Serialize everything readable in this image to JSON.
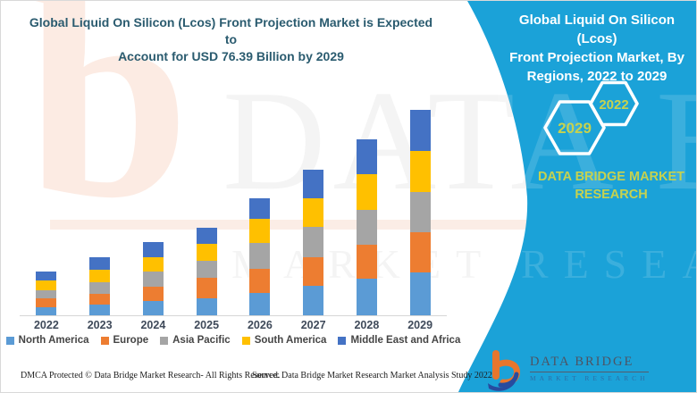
{
  "header": {
    "title_line1": "Global Liquid On Silicon (Lcos) Front Projection Market is Expected to",
    "title_line2": "Account for USD 76.39 Billion by 2029",
    "title_color": "#2a5b6f"
  },
  "side_panel": {
    "background_color": "#1ba2d8",
    "title_line1": "Global Liquid On Silicon (Lcos)",
    "title_line2": "Front Projection Market, By",
    "title_line3": "Regions, 2022 to 2029",
    "hexagon_left_label": "2029",
    "hexagon_right_label": "2022",
    "brand_line1": "DATA BRIDGE MARKET",
    "brand_line2": "RESEARCH",
    "accent_text_color": "#c6d24f"
  },
  "logo": {
    "name": "DATA BRIDGE",
    "subtitle": "MARKET RESEARCH"
  },
  "footer": {
    "left": "DMCA Protected © Data Bridge Market Research- All Rights Reserved.",
    "right": "Source: Data Bridge Market Research Market Analysis Study 2022"
  },
  "watermark": {
    "row1": "DATA BRIDGE",
    "row2": "MARKET RESEARCH",
    "letter_b": "b"
  },
  "chart_data": {
    "type": "bar",
    "subtype": "stacked-vertical",
    "title": "Global Liquid On Silicon (Lcos) Front Projection Market is Expected to Account for USD 76.39 Billion by 2029",
    "unit": "USD Billion (values estimated from bar heights)",
    "categories": [
      "2022",
      "2023",
      "2024",
      "2025",
      "2026",
      "2027",
      "2028",
      "2029"
    ],
    "series": [
      {
        "name": "North America",
        "color": "#5B9BD5",
        "values": [
          3.1,
          3.9,
          5.2,
          6.3,
          8.3,
          10.9,
          13.6,
          15.8
        ]
      },
      {
        "name": "Europe",
        "color": "#ED7D31",
        "values": [
          3.3,
          4.2,
          5.5,
          7.5,
          9.1,
          10.8,
          12.6,
          15.0
        ]
      },
      {
        "name": "Asia Pacific",
        "color": "#A5A5A5",
        "values": [
          3.0,
          4.3,
          5.5,
          6.6,
          9.4,
          11.2,
          13.1,
          15.2
        ]
      },
      {
        "name": "South America",
        "color": "#FFC000",
        "values": [
          3.5,
          4.7,
          5.3,
          6.1,
          9.0,
          10.7,
          13.3,
          15.1
        ]
      },
      {
        "name": "Middle East and Africa",
        "color": "#4472C4",
        "values": [
          3.4,
          4.6,
          5.8,
          6.1,
          7.7,
          10.7,
          12.8,
          15.3
        ]
      }
    ],
    "totals": [
      16.3,
      21.7,
      27.3,
      32.6,
      43.5,
      54.3,
      65.4,
      76.4
    ],
    "stated_value_2029": 76.39,
    "xlabel": "",
    "ylabel": "",
    "y_axis_visible": false,
    "gridlines": false,
    "legend_position": "bottom"
  }
}
